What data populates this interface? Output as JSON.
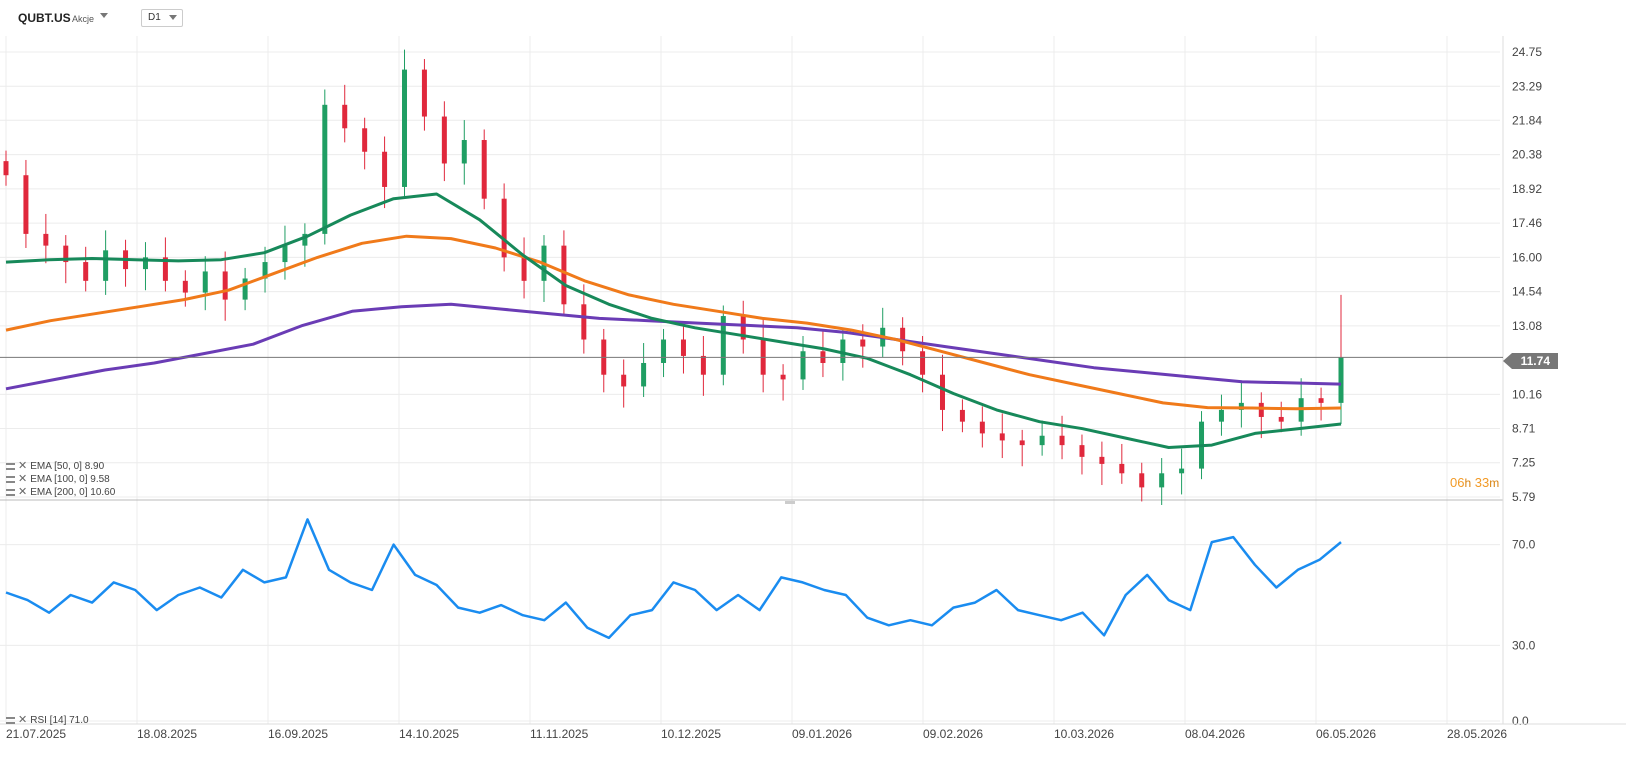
{
  "header": {
    "symbol": "QUBT.US",
    "instrument_type": "Akcje",
    "timeframe": "D1"
  },
  "price": {
    "current_label": "11.74",
    "current_value": 11.74,
    "color": "#777777"
  },
  "countdown": {
    "h_value": "06",
    "h_unit": "h",
    "m_value": "33",
    "m_unit": "m",
    "color": "#f29a26"
  },
  "legends": {
    "ema50": "EMA [50, 0] 8.90",
    "ema100": "EMA [100, 0] 9.58",
    "ema200": "EMA [200, 0] 10.60",
    "rsi": "RSI [14] 71.0"
  },
  "colors": {
    "bull": "#1f9e63",
    "bear": "#e0283c",
    "ema50": "#17895a",
    "ema100": "#f07a1a",
    "ema200": "#6a3cb5",
    "rsi": "#1a8cf0",
    "grid": "#ececec"
  },
  "chart_data": {
    "type": "line",
    "timeframe": "D1",
    "x_tick_labels": [
      "21.07.2025",
      "18.08.2025",
      "16.09.2025",
      "14.10.2025",
      "11.11.2025",
      "10.12.2025",
      "09.01.2026",
      "09.02.2026",
      "10.03.2026",
      "08.04.2026",
      "06.05.2026",
      "28.05.2026"
    ],
    "price_axis": {
      "ticks": [
        "24.75",
        "23.29",
        "21.84",
        "20.38",
        "18.92",
        "17.46",
        "16.00",
        "14.54",
        "13.08",
        "11.74",
        "10.16",
        "8.71",
        "7.25",
        "5.79"
      ],
      "range": [
        5.79,
        24.75
      ]
    },
    "rsi_axis": {
      "ticks": [
        "70.0",
        "30.0",
        "0.0"
      ],
      "range": [
        0,
        100
      ]
    },
    "series": [
      {
        "name": "EMA [50, 0]",
        "last": 8.9,
        "values": [
          15.8,
          15.9,
          15.95,
          15.9,
          15.85,
          15.9,
          16.2,
          16.9,
          17.8,
          18.5,
          18.7,
          17.6,
          16.1,
          14.8,
          14.0,
          13.4,
          13.0,
          12.7,
          12.4,
          12.1,
          11.7,
          11.0,
          10.2,
          9.5,
          9.0,
          8.7,
          8.3,
          7.9,
          8.0,
          8.5,
          8.7,
          8.9
        ]
      },
      {
        "name": "EMA [100, 0]",
        "last": 9.58,
        "values": [
          12.9,
          13.3,
          13.6,
          13.9,
          14.2,
          14.6,
          15.3,
          16.0,
          16.6,
          16.9,
          16.8,
          16.4,
          15.8,
          15.0,
          14.4,
          14.0,
          13.7,
          13.4,
          13.2,
          12.9,
          12.5,
          12.0,
          11.5,
          11.0,
          10.6,
          10.2,
          9.8,
          9.6,
          9.58,
          9.55,
          9.58
        ]
      },
      {
        "name": "EMA [200, 0]",
        "last": 10.6,
        "values": [
          10.4,
          10.8,
          11.2,
          11.5,
          11.9,
          12.3,
          13.1,
          13.7,
          13.9,
          14.0,
          13.8,
          13.6,
          13.4,
          13.3,
          13.2,
          13.1,
          13.0,
          12.8,
          12.5,
          12.2,
          11.9,
          11.6,
          11.3,
          11.1,
          10.9,
          10.7,
          10.65,
          10.6
        ]
      },
      {
        "name": "RSI [14]",
        "last": 71.0,
        "values": [
          51,
          48,
          43,
          50,
          47,
          55,
          52,
          44,
          50,
          53,
          49,
          60,
          55,
          57,
          80,
          60,
          55,
          52,
          70,
          58,
          54,
          45,
          43,
          46,
          42,
          40,
          47,
          37,
          33,
          42,
          44,
          55,
          52,
          44,
          50,
          44,
          57,
          55,
          52,
          50,
          41,
          38,
          40,
          38,
          45,
          47,
          52,
          44,
          42,
          40,
          43,
          34,
          50,
          58,
          48,
          44,
          71,
          73,
          62,
          53,
          60,
          64,
          71
        ]
      },
      {
        "name": "candles_close_approx",
        "values": [
          19.5,
          17.0,
          16.5,
          15.8,
          15.0,
          16.3,
          15.5,
          16.0,
          15.0,
          14.5,
          15.4,
          14.2,
          15.1,
          15.8,
          16.5,
          17.0,
          22.5,
          21.5,
          20.5,
          19.0,
          24.0,
          22.0,
          20.0,
          21.0,
          18.5,
          16.0,
          15.0,
          16.5,
          14.0,
          12.5,
          11.0,
          10.5,
          11.5,
          12.5,
          11.8,
          11.0,
          13.5,
          12.5,
          11.0,
          10.8,
          12.0,
          11.5,
          12.5,
          12.2,
          13.0,
          12.0,
          11.0,
          9.5,
          9.0,
          8.5,
          8.2,
          8.0,
          8.4,
          8.0,
          7.5,
          7.2,
          6.8,
          6.2,
          6.8,
          7.0,
          9.0,
          9.5,
          9.8,
          9.2,
          9.0,
          10.0,
          9.8,
          11.74
        ]
      }
    ]
  }
}
